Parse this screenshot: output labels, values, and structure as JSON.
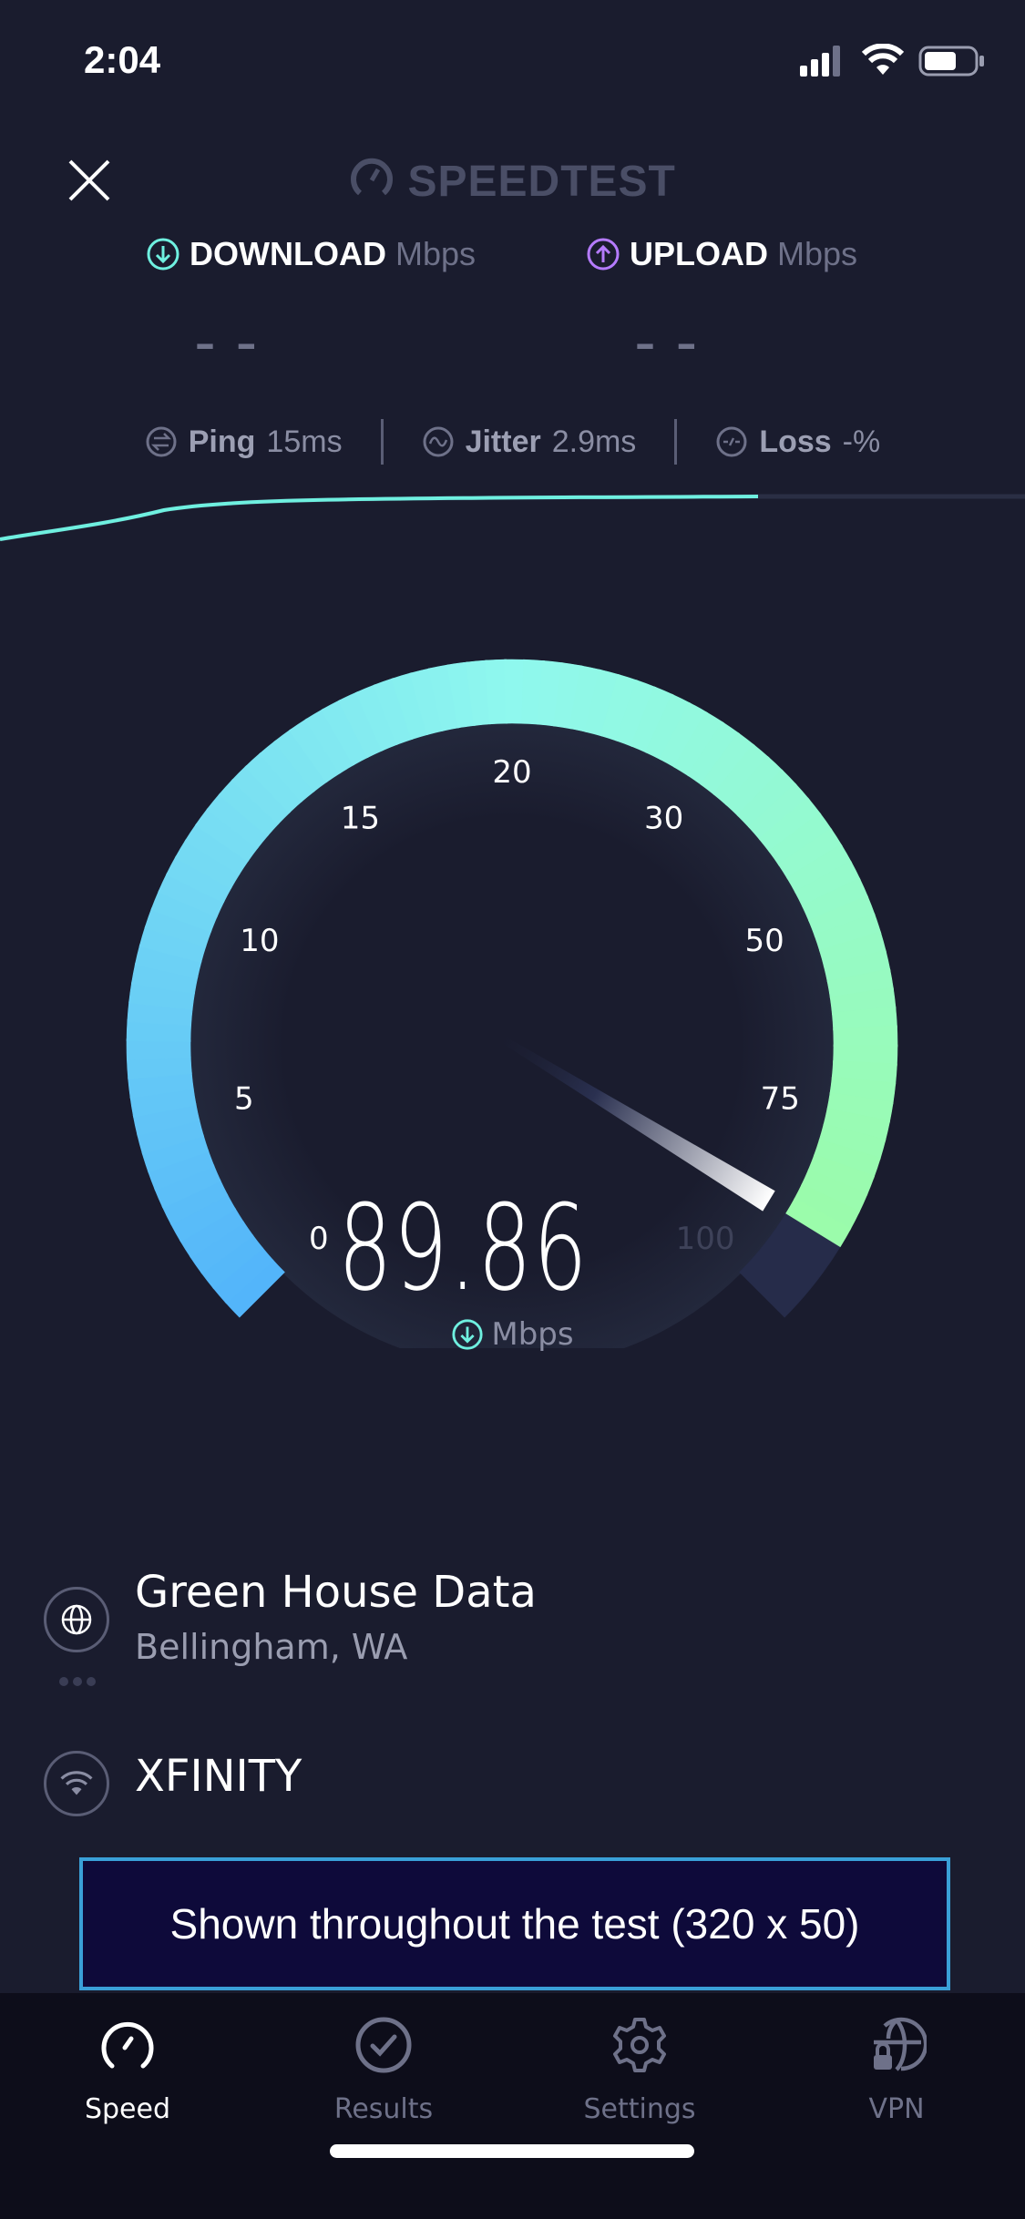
{
  "status_bar": {
    "time": "2:04",
    "icons": [
      "cellular-signal-icon",
      "wifi-icon",
      "battery-icon"
    ]
  },
  "header": {
    "close_icon": "close-icon",
    "logo_text": "SPEEDTEST"
  },
  "download": {
    "label": "DOWNLOAD",
    "unit": "Mbps",
    "value": "– –",
    "icon": "download-arrow-icon",
    "color": "#6ff0e0"
  },
  "upload": {
    "label": "UPLOAD",
    "unit": "Mbps",
    "value": "– –",
    "icon": "upload-arrow-icon",
    "color": "#b57bff"
  },
  "stats": {
    "ping": {
      "label": "Ping",
      "value": "15",
      "unit": "ms"
    },
    "jitter": {
      "label": "Jitter",
      "value": "2.9",
      "unit": "ms"
    },
    "loss": {
      "label": "Loss",
      "value": "-%"
    }
  },
  "gauge": {
    "ticks": [
      "0",
      "5",
      "10",
      "15",
      "20",
      "30",
      "50",
      "75",
      "100"
    ],
    "current_value": "89.86",
    "unit": "Mbps",
    "colors": {
      "start": "#52b4fa",
      "mid": "#8ff8ee",
      "end": "#9cfca2",
      "track": "#262c4a"
    }
  },
  "server": {
    "name": "Green House Data",
    "location": "Bellingham, WA",
    "icon": "globe-icon"
  },
  "isp": {
    "name": "XFINITY",
    "icon": "wifi-icon"
  },
  "ad": {
    "text": "Shown throughout the test (320 x 50)"
  },
  "tabs": [
    {
      "label": "Speed",
      "icon": "speedometer-icon",
      "active": true
    },
    {
      "label": "Results",
      "icon": "check-circle-icon",
      "active": false
    },
    {
      "label": "Settings",
      "icon": "gear-icon",
      "active": false
    },
    {
      "label": "VPN",
      "icon": "vpn-globe-lock-icon",
      "active": false
    }
  ]
}
